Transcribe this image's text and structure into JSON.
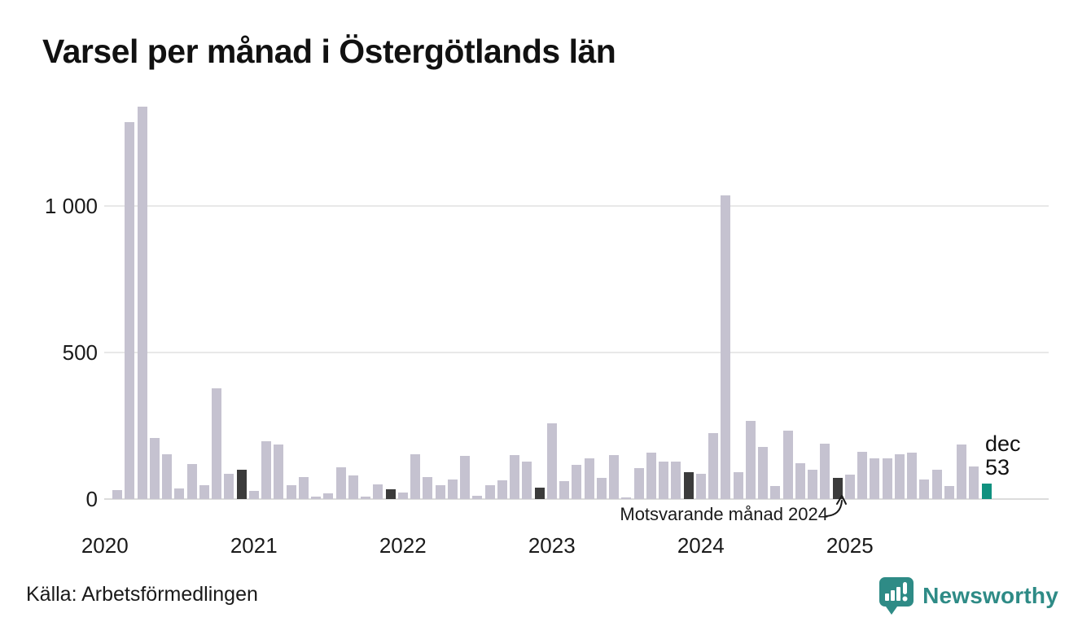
{
  "title": "Varsel per månad i Östergötlands län",
  "source": "Källa: Arbetsförmedlingen",
  "branding": {
    "logo_text": "Newsworthy"
  },
  "annotation": {
    "text": "Motsvarande månad 2024",
    "target_month": "2024-12"
  },
  "last_point_label": {
    "month": "dec",
    "value": "53"
  },
  "colors": {
    "bar": "#c5c2d0",
    "highlight": "#3b3b3b",
    "current": "#10917f",
    "grid": "#e8e8e8",
    "grid_zero": "#dcdcdc",
    "brand": "#2e8b86",
    "text": "#1a1a1a"
  },
  "chart_data": {
    "type": "bar",
    "title": "Varsel per månad i Östergötlands län",
    "xlabel": "",
    "ylabel": "",
    "ylim": [
      0,
      1370
    ],
    "yticks": [
      0,
      500,
      1000
    ],
    "ytick_labels": [
      "0",
      "500",
      "1 000"
    ],
    "year_labels": [
      "2020",
      "2021",
      "2022",
      "2023",
      "2024",
      "2025"
    ],
    "legend": "none",
    "grid": "horizontal",
    "highlight_rule": "december_months_dark",
    "current_month": "2025-12",
    "months": [
      "2020-02",
      "2020-03",
      "2020-04",
      "2020-05",
      "2020-06",
      "2020-07",
      "2020-08",
      "2020-09",
      "2020-10",
      "2020-11",
      "2020-12",
      "2021-01",
      "2021-02",
      "2021-03",
      "2021-04",
      "2021-05",
      "2021-06",
      "2021-07",
      "2021-08",
      "2021-09",
      "2021-10",
      "2021-11",
      "2021-12",
      "2022-01",
      "2022-02",
      "2022-03",
      "2022-04",
      "2022-05",
      "2022-06",
      "2022-07",
      "2022-08",
      "2022-09",
      "2022-10",
      "2022-11",
      "2022-12",
      "2023-01",
      "2023-02",
      "2023-03",
      "2023-04",
      "2023-05",
      "2023-06",
      "2023-07",
      "2023-08",
      "2023-09",
      "2023-10",
      "2023-11",
      "2023-12",
      "2024-01",
      "2024-02",
      "2024-03",
      "2024-04",
      "2024-05",
      "2024-06",
      "2024-07",
      "2024-08",
      "2024-09",
      "2024-10",
      "2024-11",
      "2024-12",
      "2025-01",
      "2025-02",
      "2025-03",
      "2025-04",
      "2025-05",
      "2025-06",
      "2025-07",
      "2025-08",
      "2025-09",
      "2025-10",
      "2025-11",
      "2025-12"
    ],
    "values": [
      31,
      1287,
      1340,
      208,
      152,
      35,
      120,
      48,
      378,
      85,
      101,
      28,
      196,
      185,
      48,
      75,
      8,
      19,
      108,
      80,
      8,
      50,
      33,
      22,
      154,
      76,
      47,
      68,
      146,
      10,
      47,
      65,
      150,
      129,
      40,
      257,
      62,
      116,
      140,
      73,
      150,
      5,
      106,
      159,
      129,
      127,
      92,
      87,
      225,
      1035,
      92,
      267,
      178,
      45,
      232,
      122,
      99,
      190,
      73,
      82,
      162,
      140,
      140,
      152,
      159,
      68,
      101,
      45,
      185,
      112,
      53
    ]
  }
}
